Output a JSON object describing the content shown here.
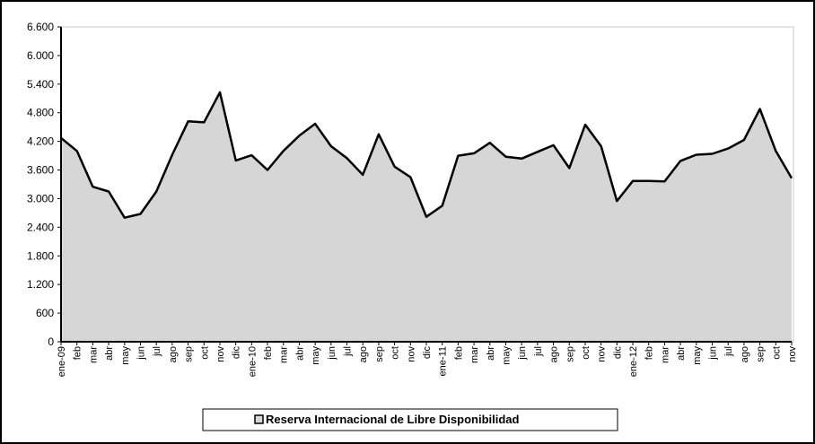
{
  "chart_data": {
    "type": "area",
    "categories": [
      "ene-09",
      "feb",
      "mar",
      "abr",
      "may",
      "jun",
      "jul",
      "ago",
      "sep",
      "oct",
      "nov",
      "dic",
      "ene-10",
      "feb",
      "mar",
      "abr",
      "may",
      "jun",
      "jul",
      "ago",
      "sep",
      "oct",
      "nov",
      "dic",
      "ene-11",
      "feb",
      "mar",
      "abr",
      "may",
      "jun",
      "jul",
      "ago",
      "sep",
      "oct",
      "nov",
      "dic",
      "ene-12",
      "feb",
      "mar",
      "abr",
      "may",
      "jun",
      "jul",
      "ago",
      "sep",
      "oct",
      "nov"
    ],
    "series": [
      {
        "name": "Reserva Internacional de Libre Disponibilidad",
        "color": "#000000",
        "fill": "#d6d6d6",
        "values": [
          4270,
          4000,
          3250,
          3150,
          2600,
          2680,
          3150,
          3920,
          4620,
          4600,
          5230,
          3800,
          3910,
          3600,
          4000,
          4320,
          4570,
          4100,
          3850,
          3500,
          4350,
          3670,
          3450,
          2620,
          2850,
          3900,
          3950,
          4170,
          3880,
          3840,
          3980,
          4120,
          3640,
          4550,
          4100,
          2950,
          3370,
          3370,
          3360,
          3790,
          3920,
          3940,
          4050,
          4230,
          4880,
          4000,
          3430
        ]
      }
    ],
    "ylim": [
      0,
      6600
    ],
    "yticks": [
      0,
      600,
      {
        "value": 1200,
        "label": "1.200"
      },
      {
        "value": 1800,
        "label": "1.800"
      },
      {
        "value": 2400,
        "label": "2.400"
      },
      {
        "value": 3000,
        "label": "3.000"
      },
      {
        "value": 3600,
        "label": "3.600"
      },
      {
        "value": 4200,
        "label": "4.200"
      },
      {
        "value": 4800,
        "label": "4.800"
      },
      {
        "value": 5400,
        "label": "5.400"
      },
      {
        "value": 6000,
        "label": "6.000"
      },
      {
        "value": 6600,
        "label": "6.600"
      }
    ],
    "grid": false,
    "legend": "bottom"
  }
}
